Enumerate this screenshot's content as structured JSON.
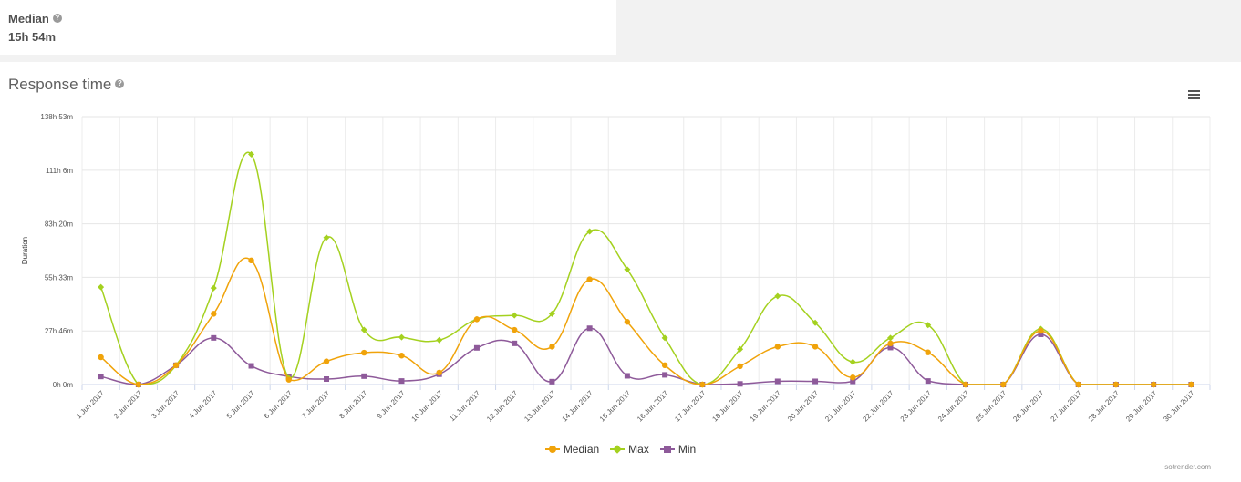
{
  "median_card": {
    "label": "Median",
    "value": "15h 54m",
    "help": "?"
  },
  "chart_panel": {
    "title": "Response time",
    "help": "?",
    "credit": "sotrender.com"
  },
  "chart_data": {
    "type": "line",
    "title": "Response time",
    "ylabel": "Duration",
    "xlabel": "",
    "y_unit": "minutes",
    "ylim": [
      0,
      8333
    ],
    "y_ticks": [
      0,
      1666,
      3333,
      5000,
      6666,
      8333
    ],
    "y_tick_labels": [
      "0h 0m",
      "27h 46m",
      "55h 33m",
      "83h 20m",
      "111h 6m",
      "138h 53m"
    ],
    "grid": true,
    "legend_position": "bottom-center",
    "categories": [
      "1 Jun 2017",
      "2 Jun 2017",
      "3 Jun 2017",
      "4 Jun 2017",
      "5 Jun 2017",
      "6 Jun 2017",
      "7 Jun 2017",
      "8 Jun 2017",
      "9 Jun 2017",
      "10 Jun 2017",
      "11 Jun 2017",
      "12 Jun 2017",
      "13 Jun 2017",
      "14 Jun 2017",
      "15 Jun 2017",
      "16 Jun 2017",
      "17 Jun 2017",
      "18 Jun 2017",
      "19 Jun 2017",
      "20 Jun 2017",
      "21 Jun 2017",
      "22 Jun 2017",
      "23 Jun 2017",
      "24 Jun 2017",
      "25 Jun 2017",
      "26 Jun 2017",
      "27 Jun 2017",
      "28 Jun 2017",
      "29 Jun 2017",
      "30 Jun 2017"
    ],
    "series": [
      {
        "name": "Median",
        "color": "#f0a30a",
        "marker": "circle",
        "values": [
          850,
          0,
          600,
          2200,
          3860,
          150,
          720,
          990,
          900,
          370,
          2030,
          1700,
          1180,
          3270,
          1950,
          600,
          0,
          570,
          1180,
          1180,
          220,
          1280,
          1000,
          0,
          0,
          1670,
          0,
          0,
          0,
          0
        ]
      },
      {
        "name": "Max",
        "color": "#a4d11f",
        "marker": "diamond",
        "values": [
          3030,
          0,
          600,
          3000,
          7160,
          200,
          4570,
          1700,
          1470,
          1380,
          2030,
          2150,
          2200,
          4760,
          3580,
          1450,
          0,
          1100,
          2750,
          1920,
          700,
          1450,
          1850,
          0,
          0,
          1730,
          0,
          0,
          0,
          0
        ]
      },
      {
        "name": "Min",
        "color": "#8e5a9a",
        "marker": "square",
        "values": [
          250,
          0,
          600,
          1450,
          580,
          250,
          170,
          260,
          110,
          320,
          1140,
          1280,
          90,
          1750,
          270,
          300,
          0,
          20,
          100,
          100,
          100,
          1150,
          110,
          0,
          0,
          1560,
          0,
          0,
          0,
          0
        ]
      }
    ]
  }
}
